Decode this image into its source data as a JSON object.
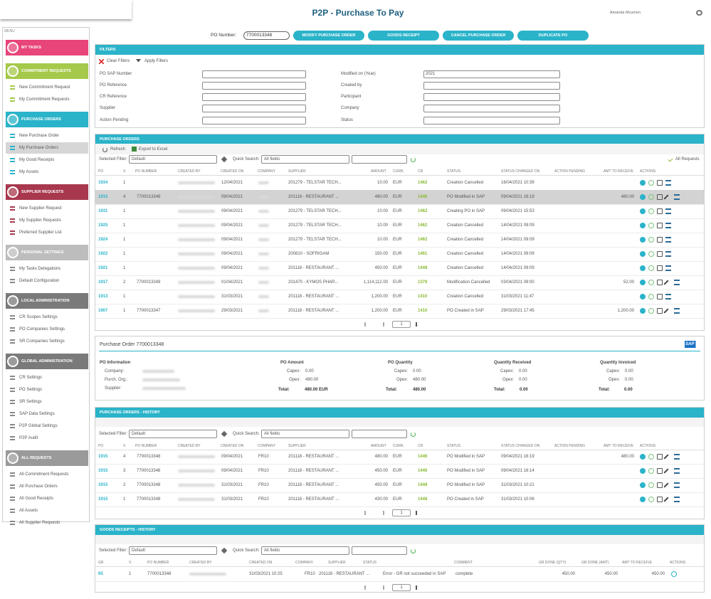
{
  "header": {
    "title": "P2P - Purchase To Pay",
    "user": "Amanda Mcumen"
  },
  "po_bar": {
    "label": "PO Number:",
    "value": "7700013348",
    "buttons": [
      "MODIFY PURCHASE ORDER",
      "GOODS RECEIPT",
      "CANCEL PURCHASE ORDER",
      "DUPLICATE PO"
    ]
  },
  "sidebar": {
    "menu_label": "MENU",
    "sections": [
      {
        "title": "MY TASKS",
        "color": "#e8457a",
        "items": []
      },
      {
        "title": "COMMITMENT REQUESTS",
        "color": "#a5c94a",
        "items": [
          {
            "label": "New Commitment Request"
          },
          {
            "label": "My Commitment Requests"
          }
        ]
      },
      {
        "title": "PURCHASE ORDERS",
        "color": "#2ab3c9",
        "items": [
          {
            "label": "New Purchase Order"
          },
          {
            "label": "My Purchase Orders",
            "selected": true
          },
          {
            "label": "My Good Receipts"
          },
          {
            "label": "My Assets"
          }
        ]
      },
      {
        "title": "SUPPLIER REQUESTS",
        "color": "#a8384e",
        "items": [
          {
            "label": "New Supplier Request"
          },
          {
            "label": "My Supplier Requests"
          },
          {
            "label": "Preferred Supplier List"
          }
        ]
      },
      {
        "title": "PERSONAL SETTINGS",
        "color": "#bdbdbd",
        "items": [
          {
            "label": "My Tasks Delegations"
          },
          {
            "label": "Default Configuration"
          }
        ]
      },
      {
        "title": "LOCAL ADMINISTRATION",
        "color": "#7a7a7a",
        "items": [
          {
            "label": "CR Scopes Settings"
          },
          {
            "label": "PO Companies Settings"
          },
          {
            "label": "SR Companies Settings"
          }
        ]
      },
      {
        "title": "GLOBAL ADMINISTRATION",
        "color": "#7a7a7a",
        "items": [
          {
            "label": "CR Settings"
          },
          {
            "label": "PO Settings"
          },
          {
            "label": "SR Settings"
          },
          {
            "label": "SAP Data Settings"
          },
          {
            "label": "P2P Global Settings"
          },
          {
            "label": "P2P Audit"
          }
        ]
      },
      {
        "title": "ALL REQUESTS",
        "color": "#9a9a9a",
        "items": [
          {
            "label": "All Commitment Requests"
          },
          {
            "label": "All Purchase Orders"
          },
          {
            "label": "All Good Receipts"
          },
          {
            "label": "All Assets"
          },
          {
            "label": "All Supplier Requests"
          }
        ]
      }
    ]
  },
  "filters": {
    "title": "FILTERS",
    "clear": "Clear Filters",
    "apply": "Apply Filters",
    "fields_left": [
      {
        "label": "PO SAP Number"
      },
      {
        "label": "PO Reference"
      },
      {
        "label": "CR Reference"
      },
      {
        "label": "Supplier"
      },
      {
        "label": "Action Pending"
      }
    ],
    "fields_right": [
      {
        "label": "Modified on (Year)",
        "value": "2021"
      },
      {
        "label": "Created by"
      },
      {
        "label": "Participant"
      },
      {
        "label": "Company"
      },
      {
        "label": "Status"
      }
    ]
  },
  "purchase_orders": {
    "title": "PURCHASE ORDERS",
    "refresh": "Refresh",
    "export": "Export to Excel",
    "selected_filter_label": "Selected Filter:",
    "selected_filter": "Default",
    "quick_search_label": "Quick Search:",
    "quick_search": "All fields",
    "all_requests": "All Requests",
    "columns": [
      "PO",
      "V.",
      "PO NUMBER",
      "CREATED BY",
      "CREATED ON",
      "COMPANY",
      "SUPPLIER",
      "AMOUNT",
      "CURR.",
      "CR",
      "STATUS",
      "STATUS CHANGED ON",
      "ACTION PENDING",
      "AMT TO RECEIVE",
      "ACTIONS"
    ],
    "redacted_columns": [
      3,
      5
    ],
    "highlight_row": 1,
    "rows": [
      [
        1934,
        1,
        null,
        null,
        "12/04/2021",
        null,
        "201279 - TELSTAR TECH...",
        "10.00",
        "EUR",
        1462,
        "Creation Cancelled",
        "16/04/2021 10:39",
        null,
        null
      ],
      [
        1915,
        4,
        "7700013348",
        null,
        "09/04/2021",
        null,
        "201118 - RESTAURANT ...",
        "480.00",
        "EUR",
        1446,
        "PO Modified in SAP",
        "09/04/2021 16:19",
        null,
        "480.00"
      ],
      [
        1931,
        1,
        null,
        null,
        "09/04/2021",
        null,
        "201279 - TELSTAR TECH...",
        "10.00",
        "EUR",
        1462,
        "Creating PO in SAP",
        "09/04/2021 15:53",
        null,
        null
      ],
      [
        1925,
        1,
        null,
        null,
        "09/04/2021",
        null,
        "201279 - TELSTAR TECH...",
        "10.00",
        "EUR",
        1462,
        "Creation Cancelled",
        "14/04/2021 09:09",
        null,
        null
      ],
      [
        1924,
        1,
        null,
        null,
        "09/04/2021",
        null,
        "201279 - TELSTAR TECH...",
        "10.00",
        "EUR",
        1462,
        "Creation Cancelled",
        "14/04/2021 09:09",
        null,
        null
      ],
      [
        1922,
        1,
        null,
        null,
        "09/04/2021",
        null,
        "200810 - SOFRIGAM",
        "150.00",
        "EUR",
        1461,
        "Creation Cancelled",
        "14/04/2021 09:09",
        null,
        null
      ],
      [
        1921,
        1,
        null,
        null,
        "09/04/2021",
        null,
        "201118 - RESTAURANT ...",
        "450.00",
        "EUR",
        1448,
        "Creation Cancelled",
        "14/04/2021 09:09",
        null,
        null
      ],
      [
        1917,
        2,
        "7700013349",
        null,
        "01/04/2021",
        null,
        "201470 - KYMOS PHAR...",
        "1,114,112.00",
        "EUR",
        1379,
        "Modification Cancelled",
        "03/04/2021 09:00",
        null,
        "52.00"
      ],
      [
        1913,
        1,
        null,
        null,
        "31/03/2021",
        null,
        "201118 - RESTAURANT ...",
        "1,200.00",
        "EUR",
        1410,
        "Creation Cancelled",
        "31/03/2021 11:47",
        null,
        null
      ],
      [
        1907,
        1,
        "7700013347",
        null,
        "29/03/2021",
        null,
        "201118 - RESTAURANT ...",
        "1,200.00",
        "EUR",
        1410,
        "PO Created in SAP",
        "29/03/2021 17:45",
        null,
        "1,200.00"
      ]
    ],
    "page": 1
  },
  "po_detail": {
    "title": "Purchase Order 7700013348",
    "logo": "SAP",
    "info": {
      "title": "PO Information",
      "labels": [
        "Company:",
        "Purch. Org.:",
        "Supplier:"
      ]
    },
    "blocks": [
      {
        "title": "PO Amount",
        "capex_label": "Capex:",
        "capex": "0.00",
        "opex_label": "Opex:",
        "opex": "480.00",
        "total_label": "Total:",
        "total": "480.00 EUR"
      },
      {
        "title": "PO Quantity",
        "capex_label": "Capex:",
        "capex": "0.00",
        "opex_label": "Opex:",
        "opex": "480.00",
        "total_label": "Total:",
        "total": "480.00"
      },
      {
        "title": "Quantity Received",
        "capex_label": "Capex:",
        "capex": "0.00",
        "opex_label": "Opex:",
        "opex": "0.00",
        "total_label": "Total:",
        "total": "0.00"
      },
      {
        "title": "Quantity Invoiced",
        "capex_label": "Capex:",
        "capex": "0.00",
        "opex_label": "Opex:",
        "opex": "0.00",
        "total_label": "Total:",
        "total": "0.00"
      }
    ]
  },
  "history": {
    "title": "PURCHASE ORDERS - HISTORY",
    "selected_filter_label": "Selected Filter:",
    "selected_filter": "Default",
    "quick_search_label": "Quick Search:",
    "quick_search": "All fields",
    "columns": [
      "PO",
      "V.",
      "PO NUMBER",
      "CREATED BY",
      "CREATED ON",
      "COMPANY",
      "SUPPLIER",
      "AMOUNT",
      "CURR.",
      "CR",
      "STATUS",
      "STATUS CHANGED ON",
      "ACTION PENDING",
      "AMT TO RECEIVE",
      "ACTIONS"
    ],
    "redacted_columns": [
      3
    ],
    "rows": [
      [
        1915,
        4,
        "7700013348",
        null,
        "09/04/2021",
        "FR10",
        "201118 - RESTAURANT ...",
        "480.00",
        "EUR",
        1446,
        "PO Modified in SAP",
        "09/04/2021 16:19",
        null,
        "480.00"
      ],
      [
        1915,
        3,
        "7700013348",
        null,
        "09/04/2021",
        "FR10",
        "201118 - RESTAURANT ...",
        "450.00",
        "EUR",
        1446,
        "PO Modified in SAP",
        "09/04/2021 16:14",
        null,
        null
      ],
      [
        1915,
        2,
        "7700013348",
        null,
        "31/03/2021",
        "FR10",
        "201118 - RESTAURANT ...",
        "450.00",
        "EUR",
        1448,
        "PO Modified in SAP",
        "31/03/2021 10:21",
        null,
        null
      ],
      [
        1915,
        1,
        "7700013348",
        null,
        "31/03/2021",
        "FR10",
        "201118 - RESTAURANT ...",
        "430.00",
        "EUR",
        1448,
        "PO Created in SAP",
        "31/03/2021 10:06",
        null,
        null
      ]
    ],
    "page": 1
  },
  "goods_receipts": {
    "title": "GOODS RECEIPTS - HISTORY",
    "selected_filter_label": "Selected Filter:",
    "selected_filter": "Default",
    "quick_search_label": "Quick Search:",
    "quick_search": "All fields",
    "columns": [
      "GR",
      "V.",
      "PO NUMBER",
      "CREATED BY",
      "CREATED ON",
      "COMPANY",
      "SUPPLIER",
      "STATUS",
      "COMMENT",
      "GR DONE (QTY)",
      "GR DONE (AMT)",
      "AMT TO RECEIVE",
      "ACTIONS"
    ],
    "redacted_columns": [
      3
    ],
    "rows": [
      [
        65,
        1,
        "7700013348",
        null,
        "31/03/2021 10:25",
        "FR10",
        "201118 - RESTAURANT ...",
        "Error - GR not succeeded in SAP",
        "complete",
        "450.00",
        "450.00",
        "450.00"
      ]
    ],
    "page": 1
  }
}
